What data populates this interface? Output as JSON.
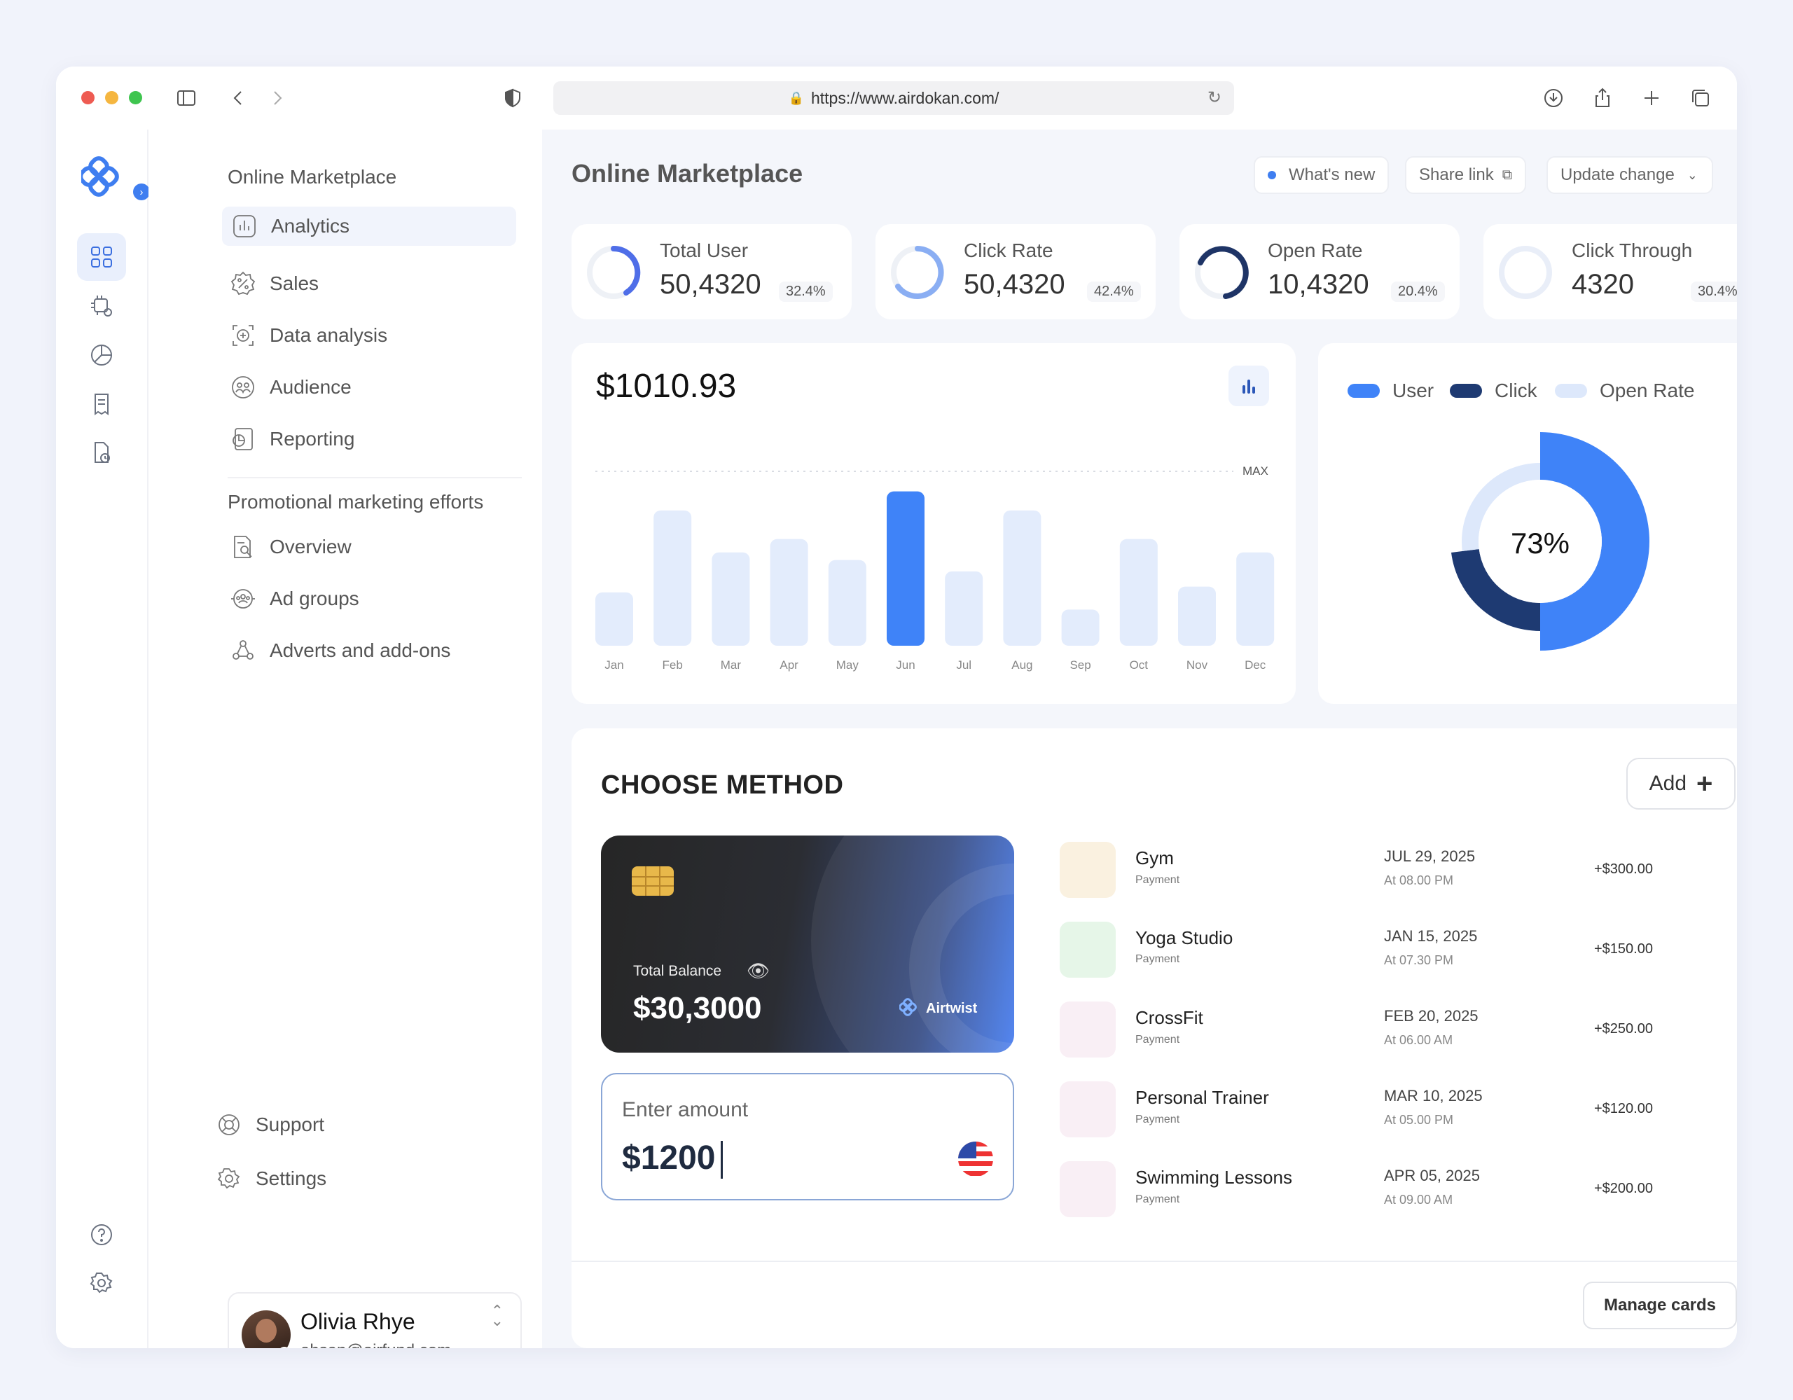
{
  "browser": {
    "url": "https://www.airdokan.com/",
    "traffic_lights": [
      "#ee5b52",
      "#f5b640",
      "#3fc54f"
    ]
  },
  "sidebar": {
    "section1_title": "Online Marketplace",
    "items": [
      {
        "label": "Analytics",
        "icon": "analytics-icon",
        "active": true
      },
      {
        "label": "Sales",
        "icon": "percent-badge-icon"
      },
      {
        "label": "Data analysis",
        "icon": "data-analysis-icon"
      },
      {
        "label": "Audience",
        "icon": "audience-icon"
      },
      {
        "label": "Reporting",
        "icon": "reporting-icon"
      }
    ],
    "section2_title": "Promotional marketing efforts",
    "items2": [
      {
        "label": "Overview",
        "icon": "overview-icon"
      },
      {
        "label": "Ad groups",
        "icon": "ad-groups-icon"
      },
      {
        "label": "Adverts and add-ons",
        "icon": "adverts-icon"
      }
    ],
    "support_label": "Support",
    "settings_label": "Settings",
    "user": {
      "name": "Olivia Rhye",
      "email": "ahsan@airfund.com"
    }
  },
  "header": {
    "title": "Online Marketplace",
    "whats_new": "What's new",
    "share_link": "Share link",
    "update_change": "Update change"
  },
  "stats": [
    {
      "label": "Total User",
      "value": "50,4320",
      "pct": "32.4%"
    },
    {
      "label": "Click Rate",
      "value": "50,4320",
      "pct": "42.4%"
    },
    {
      "label": "Open Rate",
      "value": "10,4320",
      "pct": "20.4%"
    },
    {
      "label": "Click Through",
      "value": "4320",
      "pct": "30.4%"
    }
  ],
  "bar_chart": {
    "total": "$1010.93",
    "max_label": "MAX"
  },
  "donut": {
    "center_label": "73%",
    "legend": [
      {
        "name": "User",
        "color": "#3f83f8"
      },
      {
        "name": "Click",
        "color": "#1e3a72"
      },
      {
        "name": "Open Rate",
        "color": "#dde8fb"
      }
    ]
  },
  "chart_data": [
    {
      "type": "bar",
      "categories": [
        "Jan",
        "Feb",
        "Mar",
        "Apr",
        "May",
        "Jun",
        "Jul",
        "Aug",
        "Sep",
        "Oct",
        "Nov",
        "Dec"
      ],
      "values": [
        28,
        71,
        49,
        56,
        45,
        81,
        39,
        71,
        19,
        56,
        31,
        49
      ],
      "highlight": "Jun",
      "ylim": [
        0,
        100
      ],
      "title": "$1010.93",
      "grid": false
    },
    {
      "type": "pie",
      "labels": [
        "User",
        "Click",
        "Open Rate"
      ],
      "values": [
        50,
        23,
        27
      ],
      "center_label": "73%",
      "legend_position": "top"
    }
  ],
  "method": {
    "title": "CHOOSE METHOD",
    "add_label": "Add",
    "card": {
      "balance_label": "Total Balance",
      "balance": "$30,3000",
      "brand": "Airtwist"
    },
    "amount": {
      "label": "Enter amount",
      "value": "$1200"
    },
    "transactions": [
      {
        "name": "Gym",
        "sub": "Payment",
        "date": "JUL 29, 2025",
        "time": "At 08.00 PM",
        "amount": "+$300.00",
        "color": "#faf1e0"
      },
      {
        "name": "Yoga Studio",
        "sub": "Payment",
        "date": "JAN 15, 2025",
        "time": "At 07.30 PM",
        "amount": "+$150.00",
        "color": "#e6f6e8"
      },
      {
        "name": "CrossFit",
        "sub": "Payment",
        "date": "FEB 20, 2025",
        "time": "At 06.00 AM",
        "amount": "+$250.00",
        "color": "#f9eff5"
      },
      {
        "name": "Personal Trainer",
        "sub": "Payment",
        "date": "MAR 10, 2025",
        "time": "At 05.00 PM",
        "amount": "+$120.00",
        "color": "#f9eff5"
      },
      {
        "name": "Swimming Lessons",
        "sub": "Payment",
        "date": "APR 05, 2025",
        "time": "At 09.00 AM",
        "amount": "+$200.00",
        "color": "#f9eff5"
      }
    ],
    "manage_cards": "Manage cards"
  }
}
